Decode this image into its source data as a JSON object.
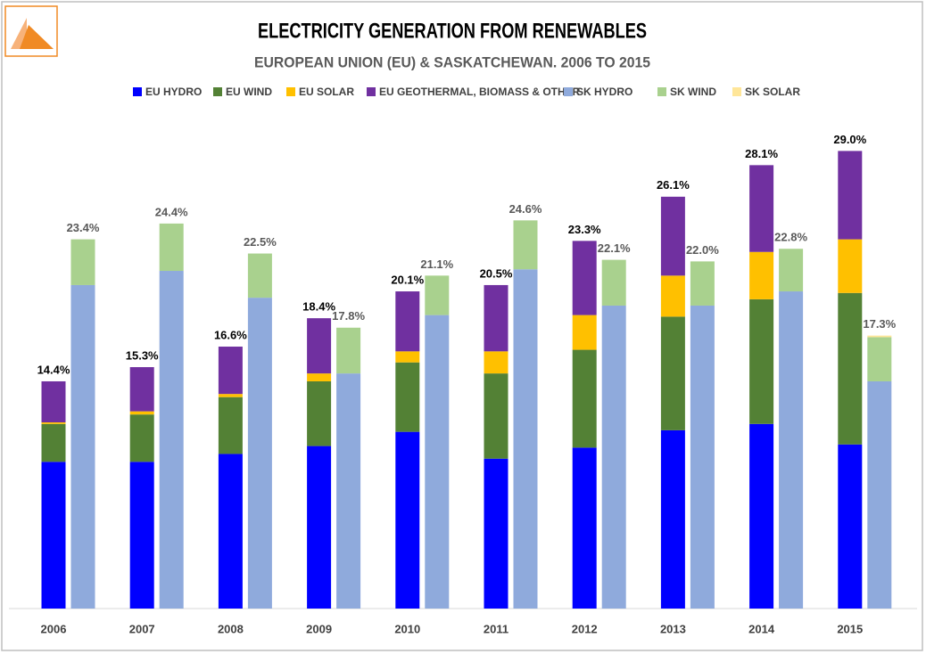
{
  "chart_data": {
    "type": "stacked_grouped_bar",
    "title": "ELECTRICITY GENERATION FROM RENEWABLES",
    "subtitle": "EUROPEAN UNION (EU) & SASKATCHEWAN. 2006 TO 2015",
    "categories": [
      "2006",
      "2007",
      "2008",
      "2009",
      "2010",
      "2011",
      "2012",
      "2013",
      "2014",
      "2015"
    ],
    "ylim": [
      0,
      31
    ],
    "series": [
      {
        "name": "EU HYDRO",
        "color": "#0000ff",
        "stack": 0,
        "values": [
          9.3,
          9.3,
          9.8,
          10.3,
          11.2,
          9.5,
          10.2,
          11.3,
          11.7,
          10.4
        ]
      },
      {
        "name": "EU WIND",
        "color": "#538135",
        "stack": 0,
        "values": [
          2.4,
          3.0,
          3.6,
          4.1,
          4.4,
          5.4,
          6.2,
          7.2,
          7.9,
          9.6
        ]
      },
      {
        "name": "EU SOLAR",
        "color": "#ffc000",
        "stack": 0,
        "values": [
          0.1,
          0.2,
          0.2,
          0.5,
          0.7,
          1.4,
          2.2,
          2.6,
          3.0,
          3.4
        ]
      },
      {
        "name": "EU GEOTHERMAL, BIOMASS & OTHER",
        "color": "#7030a0",
        "stack": 0,
        "values": [
          2.6,
          2.8,
          3.0,
          3.5,
          3.8,
          4.2,
          4.7,
          5.0,
          5.5,
          5.6
        ]
      },
      {
        "name": "SK HYDRO",
        "color": "#8faadc",
        "stack": 1,
        "values": [
          20.5,
          21.4,
          19.7,
          14.9,
          18.6,
          21.5,
          19.2,
          19.2,
          20.1,
          14.4
        ]
      },
      {
        "name": "SK WIND",
        "color": "#a9d18e",
        "stack": 1,
        "values": [
          2.9,
          3.0,
          2.8,
          2.9,
          2.5,
          3.1,
          2.9,
          2.8,
          2.7,
          2.8
        ]
      },
      {
        "name": "SK SOLAR",
        "color": "#ffe699",
        "stack": 1,
        "values": [
          0,
          0,
          0,
          0,
          0,
          0,
          0,
          0,
          0,
          0.1
        ]
      }
    ],
    "stack_totals": [
      {
        "color": "#000000",
        "values": [
          14.4,
          15.3,
          16.6,
          18.4,
          20.1,
          20.5,
          23.3,
          26.1,
          28.1,
          29.0
        ],
        "value_labels": [
          "14.4%",
          "15.3%",
          "16.6%",
          "18.4%",
          "20.1%",
          "20.5%",
          "23.3%",
          "26.1%",
          "28.1%",
          "29.0%"
        ]
      },
      {
        "color": "#595959",
        "values": [
          23.4,
          24.4,
          22.5,
          17.8,
          21.1,
          24.6,
          22.1,
          22.0,
          22.8,
          17.3
        ],
        "value_labels": [
          "23.4%",
          "24.4%",
          "22.5%",
          "17.8%",
          "21.1%",
          "24.6%",
          "22.1%",
          "22.0%",
          "22.8%",
          "17.3%"
        ]
      }
    ]
  }
}
